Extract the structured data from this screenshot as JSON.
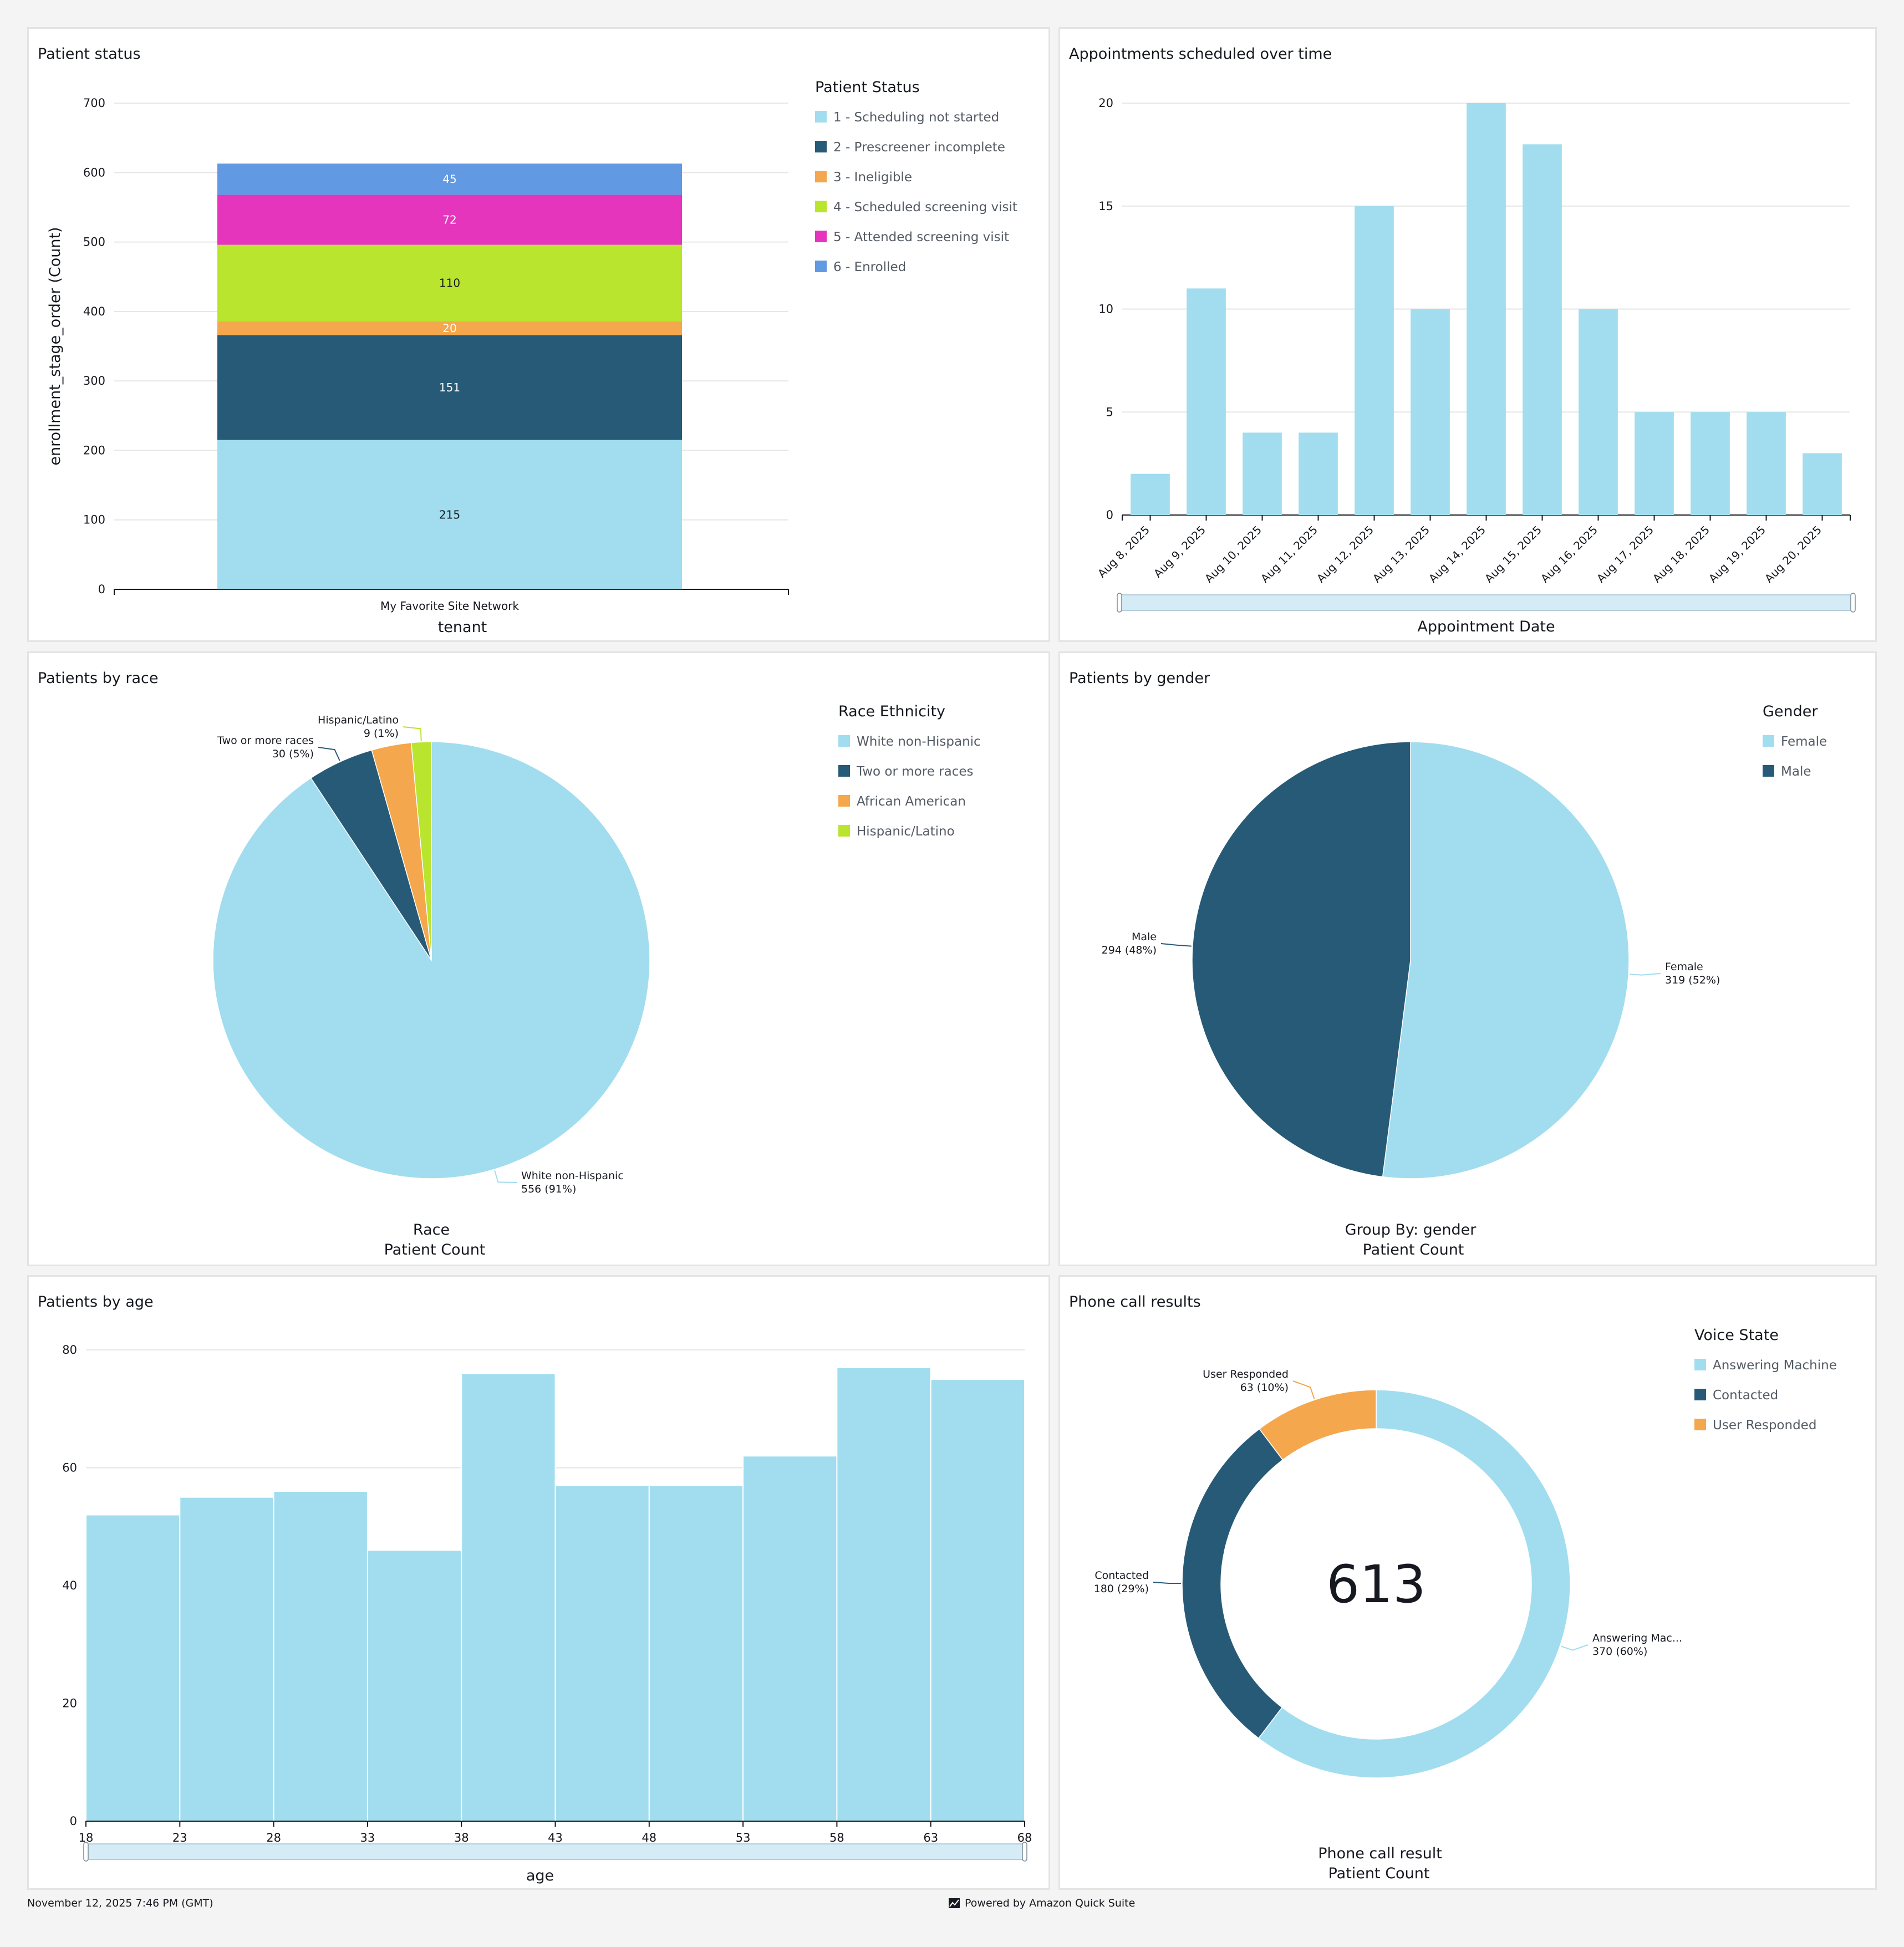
{
  "panels": {
    "status": {
      "title": "Patient status"
    },
    "appointments": {
      "title": "Appointments scheduled over time"
    },
    "race": {
      "title": "Patients by race"
    },
    "gender": {
      "title": "Patients by gender"
    },
    "age": {
      "title": "Patients by age"
    },
    "calls": {
      "title": "Phone call results"
    }
  },
  "footer": {
    "timestamp": "November 12, 2025 7:46 PM (GMT)",
    "powered_by": "Powered by Amazon Quick Suite",
    "logo_icon": "quicksight-logo-icon"
  },
  "chart_data": [
    {
      "id": "patient_status",
      "type": "bar",
      "stacked": true,
      "categories": [
        "My Favorite Site Network"
      ],
      "series": [
        {
          "name": "1 - Scheduling not started",
          "values": [
            215
          ],
          "color": "#a1ddee"
        },
        {
          "name": "2 - Prescreener incomplete",
          "values": [
            151
          ],
          "color": "#275a77"
        },
        {
          "name": "3 - Ineligible",
          "values": [
            20
          ],
          "color": "#f4a74c"
        },
        {
          "name": "4 - Scheduled screening visit",
          "values": [
            110
          ],
          "color": "#b9e52f"
        },
        {
          "name": "5 - Attended screening visit",
          "values": [
            72
          ],
          "color": "#e535bd"
        },
        {
          "name": "6 - Enrolled",
          "values": [
            45
          ],
          "color": "#6199e2"
        }
      ],
      "xlabel": "tenant",
      "ylabel": "enrollment_stage_order (Count)",
      "ylim": [
        0,
        700
      ],
      "yticks": [
        0,
        100,
        200,
        300,
        400,
        500,
        600,
        700
      ],
      "legend_title": "Patient Status",
      "legend_position": "right",
      "grid": true
    },
    {
      "id": "appointments",
      "type": "bar",
      "categories": [
        "Aug 8, 2025",
        "Aug 9, 2025",
        "Aug 10, 2025",
        "Aug 11, 2025",
        "Aug 12, 2025",
        "Aug 13, 2025",
        "Aug 14, 2025",
        "Aug 15, 2025",
        "Aug 16, 2025",
        "Aug 17, 2025",
        "Aug 18, 2025",
        "Aug 19, 2025",
        "Aug 20, 2025"
      ],
      "values": [
        2,
        11,
        4,
        4,
        15,
        10,
        20,
        18,
        10,
        5,
        5,
        5,
        3
      ],
      "color": "#a1ddee",
      "xlabel": "Appointment Date",
      "ylabel": "",
      "ylim": [
        0,
        20
      ],
      "yticks": [
        0,
        5,
        10,
        15,
        20
      ],
      "grid": true
    },
    {
      "id": "race",
      "type": "pie",
      "labels": [
        "White non-Hispanic",
        "Two or more races",
        "African American",
        "Hispanic/Latino"
      ],
      "values": [
        556,
        30,
        18,
        9
      ],
      "colors": [
        "#a1ddee",
        "#275a77",
        "#f4a74c",
        "#b9e52f"
      ],
      "data_labels": [
        [
          "White non-Hispanic",
          "556 (91%)"
        ],
        [
          "Two or more races",
          "30 (5%)"
        ],
        null,
        [
          "Hispanic/Latino",
          "9 (1%)"
        ]
      ],
      "xlabel": "Race",
      "value_label": "Patient Count",
      "legend_title": "Race Ethnicity",
      "legend_position": "right"
    },
    {
      "id": "gender",
      "type": "pie",
      "labels": [
        "Female",
        "Male"
      ],
      "values": [
        319,
        294
      ],
      "colors": [
        "#a1ddee",
        "#275a77"
      ],
      "data_labels": [
        [
          "Female",
          "319 (52%)"
        ],
        [
          "Male",
          "294 (48%)"
        ]
      ],
      "xlabel": "Group By: gender",
      "value_label": "Patient Count",
      "legend_title": "Gender",
      "legend_position": "right"
    },
    {
      "id": "age",
      "type": "bar",
      "histogram": true,
      "bin_edges": [
        18,
        23,
        28,
        33,
        38,
        43,
        48,
        53,
        58,
        63,
        68
      ],
      "values": [
        52,
        55,
        56,
        46,
        76,
        57,
        57,
        62,
        77,
        75
      ],
      "color": "#a1ddee",
      "xlabel": "age",
      "ylabel": "",
      "ylim": [
        0,
        80
      ],
      "yticks": [
        0,
        20,
        40,
        60,
        80
      ],
      "grid": true
    },
    {
      "id": "calls",
      "type": "pie",
      "donut": true,
      "labels": [
        "Answering Machine",
        "Contacted",
        "User Responded"
      ],
      "values": [
        370,
        180,
        63
      ],
      "colors": [
        "#a1ddee",
        "#275a77",
        "#f4a74c"
      ],
      "data_labels": [
        [
          "Answering Mac...",
          "370 (60%)"
        ],
        [
          "Contacted",
          "180 (29%)"
        ],
        [
          "User Responded",
          "63 (10%)"
        ]
      ],
      "center_label": "613",
      "xlabel": "Phone call result",
      "value_label": "Patient Count",
      "legend_title": "Voice State",
      "legend_position": "right"
    }
  ]
}
